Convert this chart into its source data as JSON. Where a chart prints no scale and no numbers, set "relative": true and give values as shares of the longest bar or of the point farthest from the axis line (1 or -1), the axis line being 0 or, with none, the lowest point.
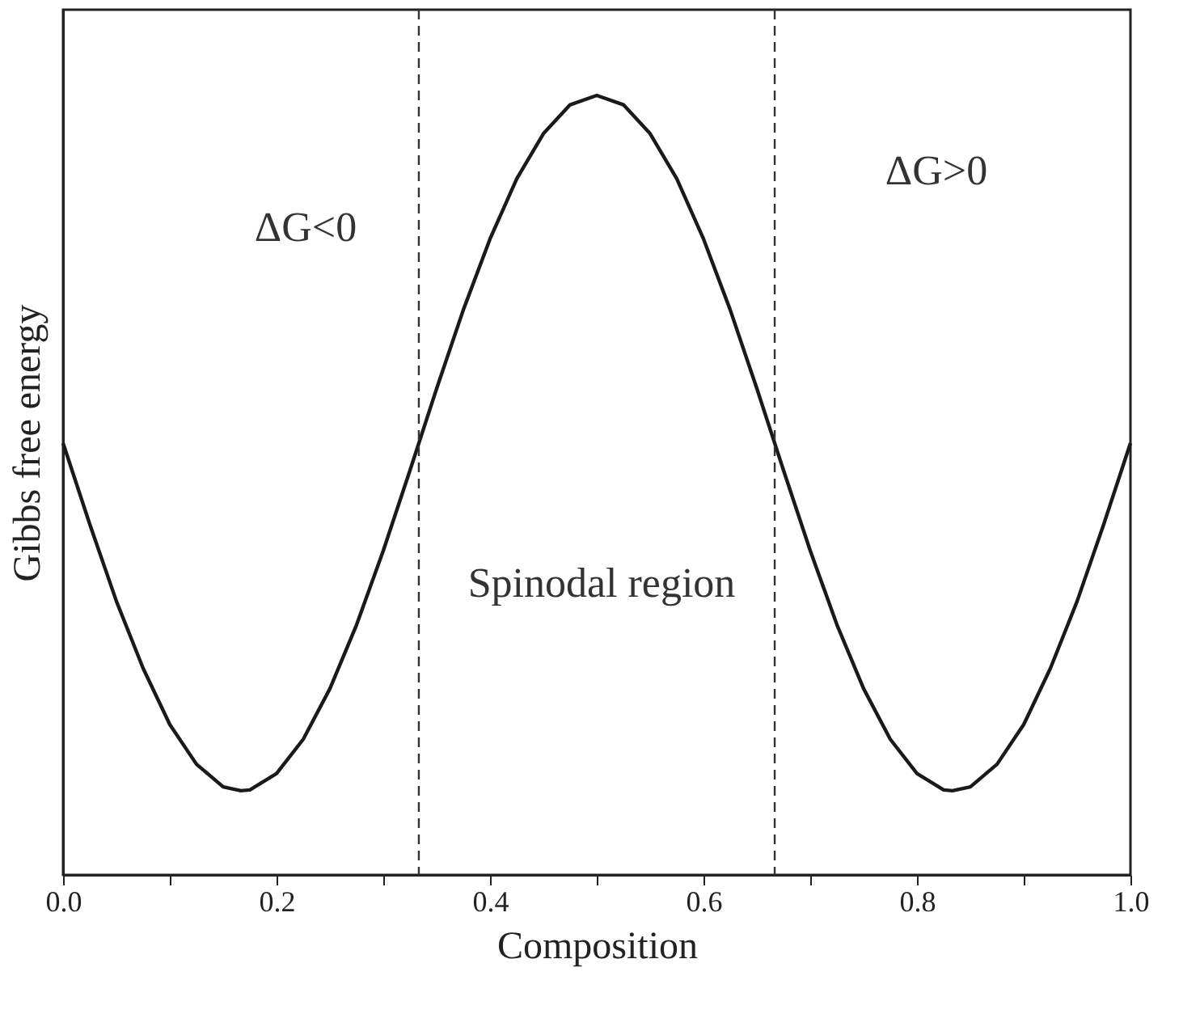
{
  "chart_data": {
    "type": "line",
    "relative": true,
    "xlabel": "Composition",
    "ylabel": "Gibbs free energy",
    "x": [
      0,
      0.025,
      0.05,
      0.075,
      0.1,
      0.125,
      0.15,
      0.1667,
      0.175,
      0.2,
      0.225,
      0.25,
      0.275,
      0.3,
      0.325,
      0.35,
      0.375,
      0.4,
      0.425,
      0.45,
      0.475,
      0.5,
      0.525,
      0.55,
      0.575,
      0.6,
      0.625,
      0.65,
      0.675,
      0.7,
      0.725,
      0.75,
      0.775,
      0.8,
      0.825,
      0.8333,
      0.85,
      0.875,
      0.9,
      0.925,
      0.95,
      0.975,
      1.0
    ],
    "series": [
      {
        "color": "#1a1a1a",
        "values": [
          0.554,
          0.45,
          0.351,
          0.265,
          0.193,
          0.142,
          0.113,
          0.108,
          0.109,
          0.13,
          0.174,
          0.239,
          0.321,
          0.416,
          0.519,
          0.624,
          0.725,
          0.816,
          0.893,
          0.951,
          0.988,
          1.0,
          0.988,
          0.951,
          0.893,
          0.816,
          0.725,
          0.624,
          0.519,
          0.416,
          0.321,
          0.239,
          0.174,
          0.13,
          0.109,
          0.108,
          0.113,
          0.142,
          0.193,
          0.265,
          0.351,
          0.45,
          0.554
        ]
      }
    ],
    "xlim": [
      0,
      1
    ],
    "xticks": [
      {
        "value": 0,
        "label": "0.0"
      },
      {
        "value": 0.1,
        "label": null
      },
      {
        "value": 0.2,
        "label": "0.2"
      },
      {
        "value": 0.3,
        "label": null
      },
      {
        "value": 0.4,
        "label": "0.4"
      },
      {
        "value": 0.5,
        "label": null
      },
      {
        "value": 0.6,
        "label": "0.6"
      },
      {
        "value": 0.7,
        "label": null
      },
      {
        "value": 0.8,
        "label": "0.8"
      },
      {
        "value": 0.9,
        "label": null
      },
      {
        "value": 1,
        "label": "1.0"
      }
    ],
    "tick_labels": "x",
    "grid": false,
    "line_style": "solid",
    "marker": "none",
    "ref_lines": [
      {
        "axis": "x",
        "value": 0.3333,
        "line_style": "dashed"
      },
      {
        "axis": "x",
        "value": 0.6667,
        "line_style": "dashed"
      }
    ],
    "annotations": [
      "ΔG<0",
      "ΔG>0",
      "Spinodal region"
    ]
  }
}
